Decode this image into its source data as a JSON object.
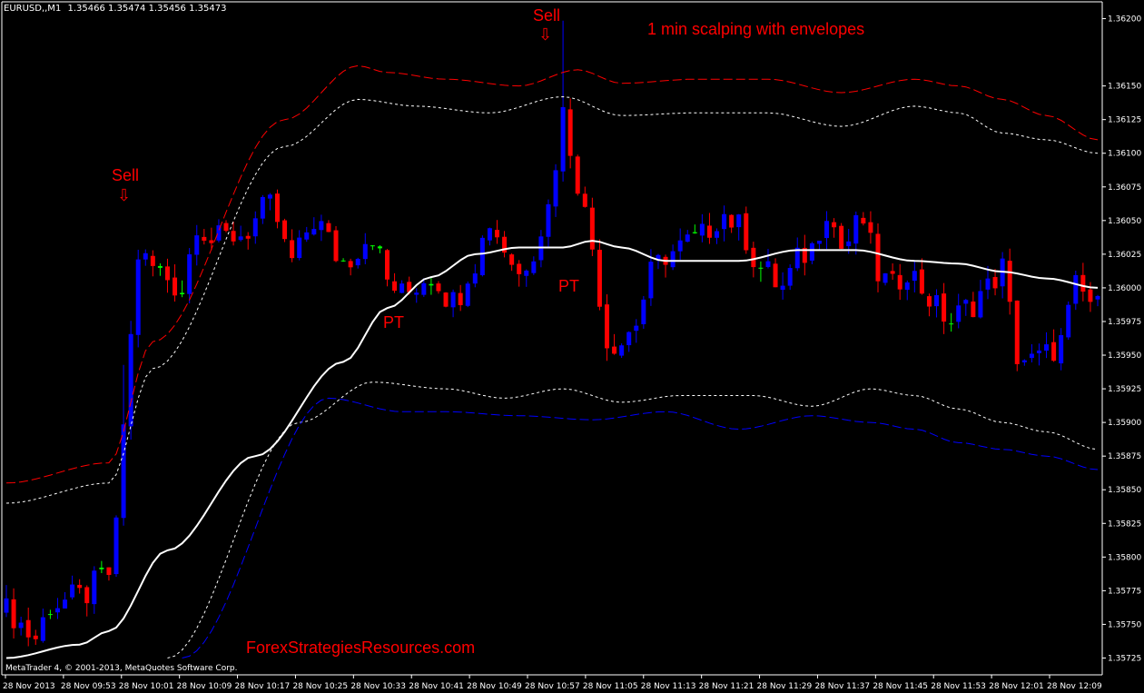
{
  "header": {
    "symbol": "EURUSD,,M1",
    "ohlc": "1.35466 1.35474 1.35456 1.35473"
  },
  "annotations": {
    "title": "1 min scalping with envelopes",
    "watermark": "ForexStrategiesResources.com",
    "copyright": "MetaTrader 4, © 2001-2013, MetaQuotes Software Corp.",
    "sell_1": "Sell",
    "sell_2": "Sell",
    "pt_1": "PT",
    "pt_2": "PT",
    "arrow_glyph": "⇩"
  },
  "colors": {
    "background": "#000000",
    "bull": "#0000ff",
    "bear": "#ff0000",
    "doji": "#00ff00",
    "ma": "#ffffff",
    "upper_env": "#ff0000",
    "lower_env": "#0000ff",
    "inner_env": "#ffffff",
    "axis": "#ffffff",
    "text": "#ffffff",
    "annotation": "#ff0000"
  },
  "chart_data": {
    "type": "candlestick",
    "title": "1 min scalping with envelopes",
    "ylim": [
      1.357125,
      1.362125
    ],
    "y_ticks": [
      "1.36200",
      "1.36150",
      "1.36125",
      "1.36100",
      "1.36075",
      "1.36050",
      "1.36025",
      "1.36000",
      "1.35975",
      "1.35950",
      "1.35925",
      "1.35900",
      "1.35875",
      "1.35850",
      "1.35825",
      "1.35800",
      "1.35775",
      "1.35750",
      "1.35725"
    ],
    "x_ticks": [
      "28 Nov 2013",
      "28 Nov 09:53",
      "28 Nov 10:01",
      "28 Nov 10:09",
      "28 Nov 10:17",
      "28 Nov 10:25",
      "28 Nov 10:33",
      "28 Nov 10:41",
      "28 Nov 10:49",
      "28 Nov 10:57",
      "28 Nov 11:05",
      "28 Nov 11:13",
      "28 Nov 11:21",
      "28 Nov 11:29",
      "28 Nov 11:37",
      "28 Nov 11:45",
      "28 Nov 11:53",
      "28 Nov 12:01",
      "28 Nov 12:09"
    ],
    "bars": 150,
    "close_anchors": [
      [
        0,
        1.3576
      ],
      [
        4,
        1.3574
      ],
      [
        6,
        1.35765
      ],
      [
        10,
        1.3577
      ],
      [
        14,
        1.35788
      ],
      [
        15,
        1.3582
      ],
      [
        16,
        1.359
      ],
      [
        18,
        1.36025
      ],
      [
        20,
        1.36015
      ],
      [
        24,
        1.36
      ],
      [
        26,
        1.3605
      ],
      [
        28,
        1.36035
      ],
      [
        32,
        1.3604
      ],
      [
        36,
        1.3606
      ],
      [
        39,
        1.3602
      ],
      [
        42,
        1.3605
      ],
      [
        46,
        1.3602
      ],
      [
        50,
        1.3604
      ],
      [
        52,
        1.36005
      ],
      [
        54,
        1.35995
      ],
      [
        58,
        1.3601
      ],
      [
        61,
        1.3599
      ],
      [
        64,
        1.3602
      ],
      [
        66,
        1.3605
      ],
      [
        68,
        1.3603
      ],
      [
        70,
        1.3601
      ],
      [
        72,
        1.3603
      ],
      [
        74,
        1.3606
      ],
      [
        76,
        1.3613
      ],
      [
        78,
        1.3608
      ],
      [
        80,
        1.3603
      ],
      [
        82,
        1.3596
      ],
      [
        84,
        1.3596
      ],
      [
        86,
        1.35975
      ],
      [
        88,
        1.3601
      ],
      [
        90,
        1.36025
      ],
      [
        94,
        1.36035
      ],
      [
        98,
        1.36055
      ],
      [
        100,
        1.36045
      ],
      [
        103,
        1.36015
      ],
      [
        106,
        1.36
      ],
      [
        108,
        1.3602
      ],
      [
        110,
        1.3603
      ],
      [
        112,
        1.3606
      ],
      [
        114,
        1.3603
      ],
      [
        117,
        1.3605
      ],
      [
        119,
        1.3601
      ],
      [
        121,
        1.36
      ],
      [
        123,
        1.36015
      ],
      [
        125,
        1.36
      ],
      [
        127,
        1.35985
      ],
      [
        129,
        1.35975
      ],
      [
        131,
        1.35985
      ],
      [
        134,
        1.36
      ],
      [
        136,
        1.36015
      ],
      [
        138,
        1.3595
      ],
      [
        140,
        1.35945
      ],
      [
        142,
        1.3595
      ],
      [
        144,
        1.3596
      ],
      [
        146,
        1.36
      ],
      [
        148,
        1.3599
      ],
      [
        149,
        1.35985
      ]
    ],
    "series": [
      {
        "name": "",
        "kind": "ma",
        "anchors": [
          [
            0,
            1.35725
          ],
          [
            10,
            1.35735
          ],
          [
            14,
            1.35745
          ],
          [
            22,
            1.35805
          ],
          [
            34,
            1.35875
          ],
          [
            46,
            1.35945
          ],
          [
            52,
            1.35985
          ],
          [
            58,
            1.36008
          ],
          [
            64,
            1.36025
          ],
          [
            70,
            1.3603
          ],
          [
            76,
            1.3603
          ],
          [
            80,
            1.36035
          ],
          [
            84,
            1.3603
          ],
          [
            90,
            1.3602
          ],
          [
            100,
            1.3602
          ],
          [
            108,
            1.36028
          ],
          [
            116,
            1.36028
          ],
          [
            124,
            1.3602
          ],
          [
            130,
            1.36018
          ],
          [
            136,
            1.36012
          ],
          [
            142,
            1.36007
          ],
          [
            149,
            1.36
          ]
        ]
      },
      {
        "name": "",
        "kind": "upper_outer",
        "anchors": [
          [
            0,
            1.35855
          ],
          [
            14,
            1.3587
          ],
          [
            20,
            1.3596
          ],
          [
            38,
            1.36125
          ],
          [
            48,
            1.36165
          ],
          [
            52,
            1.3616
          ],
          [
            60,
            1.36155
          ],
          [
            70,
            1.3615
          ],
          [
            78,
            1.36162
          ],
          [
            84,
            1.36152
          ],
          [
            94,
            1.36155
          ],
          [
            104,
            1.36155
          ],
          [
            114,
            1.36145
          ],
          [
            124,
            1.36155
          ],
          [
            130,
            1.3615
          ],
          [
            136,
            1.3614
          ],
          [
            142,
            1.36128
          ],
          [
            149,
            1.3611
          ]
        ]
      },
      {
        "name": "",
        "kind": "upper_inner",
        "anchors": [
          [
            0,
            1.3584
          ],
          [
            14,
            1.35855
          ],
          [
            20,
            1.3594
          ],
          [
            38,
            1.36105
          ],
          [
            48,
            1.3614
          ],
          [
            56,
            1.36135
          ],
          [
            66,
            1.3613
          ],
          [
            76,
            1.36142
          ],
          [
            84,
            1.36128
          ],
          [
            94,
            1.3613
          ],
          [
            104,
            1.3613
          ],
          [
            114,
            1.3612
          ],
          [
            124,
            1.36135
          ],
          [
            130,
            1.3613
          ],
          [
            136,
            1.36115
          ],
          [
            142,
            1.3611
          ],
          [
            149,
            1.361
          ]
        ]
      },
      {
        "name": "",
        "kind": "lower_inner",
        "anchors": [
          [
            22,
            1.35725
          ],
          [
            40,
            1.359
          ],
          [
            50,
            1.3593
          ],
          [
            60,
            1.35925
          ],
          [
            68,
            1.35918
          ],
          [
            76,
            1.35925
          ],
          [
            84,
            1.35915
          ],
          [
            92,
            1.3592
          ],
          [
            102,
            1.3592
          ],
          [
            110,
            1.35912
          ],
          [
            118,
            1.35925
          ],
          [
            124,
            1.3592
          ],
          [
            130,
            1.3591
          ],
          [
            136,
            1.359
          ],
          [
            142,
            1.35893
          ],
          [
            149,
            1.3588
          ]
        ]
      },
      {
        "name": "",
        "kind": "lower_outer",
        "anchors": [
          [
            24,
            1.35725
          ],
          [
            44,
            1.35918
          ],
          [
            54,
            1.35908
          ],
          [
            60,
            1.35908
          ],
          [
            70,
            1.35905
          ],
          [
            80,
            1.35902
          ],
          [
            90,
            1.35908
          ],
          [
            100,
            1.35895
          ],
          [
            110,
            1.35905
          ],
          [
            118,
            1.359
          ],
          [
            124,
            1.35895
          ],
          [
            130,
            1.35885
          ],
          [
            136,
            1.3588
          ],
          [
            142,
            1.35875
          ],
          [
            149,
            1.35865
          ]
        ]
      }
    ],
    "highlights": {
      "sell_bar_1": 16,
      "sell_bar_2": 76,
      "pt_bar_1": 51,
      "pt_bar_2": 78
    }
  }
}
